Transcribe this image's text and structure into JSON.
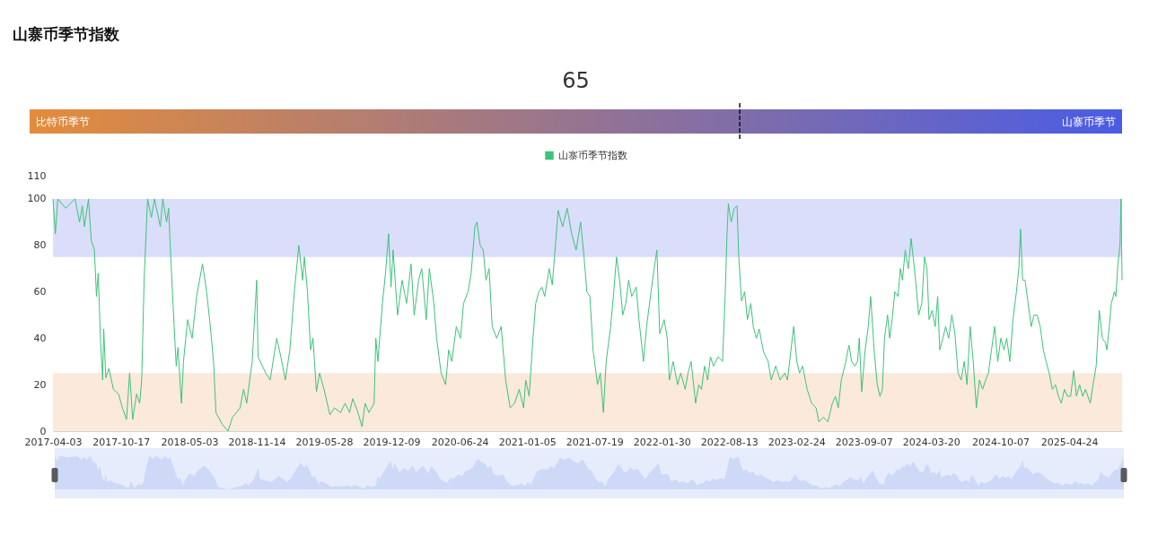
{
  "chart_data": [
    {
      "type": "other",
      "title": "山寨币季节指数",
      "values": [
        65
      ],
      "data_labels": true,
      "annotations": [
        "比特币季节",
        "山寨币季节"
      ]
    },
    {
      "type": "line",
      "legend": "top",
      "grid": false,
      "xlim": [
        "2017-04-03",
        "2025-09-24"
      ],
      "xticks": [
        "2017-04-03",
        "2017-10-17",
        "2018-05-03",
        "2018-11-14",
        "2019-05-28",
        "2019-12-09",
        "2020-06-24",
        "2021-01-05",
        "2021-07-19",
        "2022-01-30",
        "2022-08-13",
        "2023-02-24",
        "2023-09-07",
        "2024-03-20",
        "2024-10-07",
        "2025-04-24"
      ],
      "ylim": [
        0,
        110
      ],
      "yticks": [
        0,
        20,
        40,
        60,
        80,
        100,
        110
      ],
      "bands": [
        {
          "axis": "y",
          "from": 75,
          "to": 100,
          "color": "#dadefa"
        },
        {
          "axis": "y",
          "from": 0,
          "to": 25,
          "color": "#fbe9dc"
        }
      ],
      "x": [
        "2017-04-03",
        "2017-04-10",
        "2017-04-17",
        "2017-05-10",
        "2017-06-06",
        "2017-06-19",
        "2017-06-27",
        "2017-07-03",
        "2017-07-15",
        "2017-07-23",
        "2017-08-01",
        "2017-08-07",
        "2017-08-12",
        "2017-08-19",
        "2017-08-25",
        "2017-08-28",
        "2017-09-03",
        "2017-09-12",
        "2017-09-25",
        "2017-10-10",
        "2017-10-21",
        "2017-11-02",
        "2017-11-11",
        "2017-11-20",
        "2017-12-01",
        "2017-12-10",
        "2017-12-16",
        "2017-12-23",
        "2018-01-02",
        "2018-01-13",
        "2018-01-22",
        "2018-02-08",
        "2018-02-15",
        "2018-02-26",
        "2018-03-04",
        "2018-03-11",
        "2018-03-20",
        "2018-03-26",
        "2018-03-31",
        "2018-04-10",
        "2018-04-16",
        "2018-04-28",
        "2018-05-11",
        "2018-05-24",
        "2018-06-10",
        "2018-06-22",
        "2018-07-02",
        "2018-07-12",
        "2018-07-19",
        "2018-08-06",
        "2018-08-23",
        "2018-09-05",
        "2018-09-27",
        "2018-10-07",
        "2018-10-16",
        "2018-11-01",
        "2018-11-14",
        "2018-11-18",
        "2018-12-10",
        "2018-12-23",
        "2019-01-11",
        "2019-01-23",
        "2019-02-05",
        "2019-02-18",
        "2019-03-03",
        "2019-03-16",
        "2019-03-27",
        "2019-04-01",
        "2019-04-10",
        "2019-04-19",
        "2019-04-26",
        "2019-05-06",
        "2019-05-15",
        "2019-05-28",
        "2019-06-14",
        "2019-06-27",
        "2019-07-15",
        "2019-07-28",
        "2019-08-10",
        "2019-08-19",
        "2019-09-01",
        "2019-09-15",
        "2019-09-24",
        "2019-10-05",
        "2019-10-20",
        "2019-10-25",
        "2019-10-31",
        "2019-11-13",
        "2019-11-22",
        "2019-12-01",
        "2019-12-08",
        "2019-12-14",
        "2019-12-27",
        "2020-01-09",
        "2020-01-22",
        "2020-02-04",
        "2020-02-13",
        "2020-02-26",
        "2020-03-06",
        "2020-03-19",
        "2020-03-28",
        "2020-04-10",
        "2020-04-18",
        "2020-05-01",
        "2020-05-14",
        "2020-05-23",
        "2020-06-01",
        "2020-06-14",
        "2020-06-26",
        "2020-07-05",
        "2020-07-18",
        "2020-07-27",
        "2020-08-07",
        "2020-08-13",
        "2020-08-22",
        "2020-08-31",
        "2020-09-08",
        "2020-09-17",
        "2020-09-26",
        "2020-10-09",
        "2020-10-22",
        "2020-11-04",
        "2020-11-17",
        "2020-11-30",
        "2020-12-13",
        "2020-12-26",
        "2021-01-01",
        "2021-01-11",
        "2021-01-22",
        "2021-01-30",
        "2021-02-08",
        "2021-02-17",
        "2021-02-25",
        "2021-03-10",
        "2021-03-19",
        "2021-03-28",
        "2021-04-05",
        "2021-04-18",
        "2021-05-01",
        "2021-05-14",
        "2021-05-27",
        "2021-06-09",
        "2021-06-19",
        "2021-06-27",
        "2021-07-06",
        "2021-07-15",
        "2021-07-28",
        "2021-08-05",
        "2021-08-14",
        "2021-08-22",
        "2021-09-04",
        "2021-09-13",
        "2021-09-21",
        "2021-09-30",
        "2021-10-09",
        "2021-10-18",
        "2021-10-26",
        "2021-11-04",
        "2021-11-17",
        "2021-11-25",
        "2021-12-08",
        "2021-12-17",
        "2021-12-30",
        "2022-01-08",
        "2022-01-16",
        "2022-01-24",
        "2022-02-06",
        "2022-02-15",
        "2022-02-21",
        "2022-03-04",
        "2022-03-17",
        "2022-03-26",
        "2022-04-08",
        "2022-04-16",
        "2022-04-25",
        "2022-05-08",
        "2022-05-17",
        "2022-05-25",
        "2022-06-03",
        "2022-06-12",
        "2022-06-20",
        "2022-06-29",
        "2022-07-12",
        "2022-07-25",
        "2022-08-02",
        "2022-08-07",
        "2022-08-11",
        "2022-08-19",
        "2022-08-28",
        "2022-09-05",
        "2022-09-10",
        "2022-09-18",
        "2022-09-27",
        "2022-10-05",
        "2022-10-15",
        "2022-10-22",
        "2022-10-31",
        "2022-11-08",
        "2022-11-21",
        "2022-12-04",
        "2022-12-13",
        "2022-12-26",
        "2023-01-08",
        "2023-01-21",
        "2023-01-29",
        "2023-02-16",
        "2023-02-25",
        "2023-03-05",
        "2023-03-14",
        "2023-03-27",
        "2023-04-09",
        "2023-04-22",
        "2023-04-30",
        "2023-05-13",
        "2023-05-26",
        "2023-06-08",
        "2023-06-17",
        "2023-06-25",
        "2023-07-04",
        "2023-07-17",
        "2023-07-26",
        "2023-08-03",
        "2023-08-12",
        "2023-08-20",
        "2023-08-25",
        "2023-09-01",
        "2023-09-11",
        "2023-09-20",
        "2023-09-27",
        "2023-10-07",
        "2023-10-16",
        "2023-10-24",
        "2023-10-31",
        "2023-11-06",
        "2023-11-15",
        "2023-11-21",
        "2023-11-28",
        "2023-12-06",
        "2023-12-15",
        "2023-12-22",
        "2023-12-28",
        "2024-01-05",
        "2024-01-14",
        "2024-01-22",
        "2024-01-28",
        "2024-02-04",
        "2024-02-13",
        "2024-02-22",
        "2024-03-01",
        "2024-03-08",
        "2024-03-14",
        "2024-03-23",
        "2024-04-01",
        "2024-04-08",
        "2024-04-14",
        "2024-04-23",
        "2024-05-01",
        "2024-05-10",
        "2024-05-19",
        "2024-05-28",
        "2024-06-06",
        "2024-06-15",
        "2024-06-24",
        "2024-07-02",
        "2024-07-11",
        "2024-07-20",
        "2024-07-29",
        "2024-08-07",
        "2024-08-16",
        "2024-08-25",
        "2024-09-02",
        "2024-09-11",
        "2024-09-20",
        "2024-09-29",
        "2024-10-08",
        "2024-10-17",
        "2024-10-25",
        "2024-11-03",
        "2024-11-12",
        "2024-11-22",
        "2024-11-29",
        "2024-12-04",
        "2024-12-10",
        "2024-12-17",
        "2024-12-26",
        "2025-01-04",
        "2025-01-12",
        "2025-01-21",
        "2025-01-30",
        "2025-02-08",
        "2025-02-16",
        "2025-02-25",
        "2025-03-06",
        "2025-03-15",
        "2025-03-24",
        "2025-04-01",
        "2025-04-10",
        "2025-04-19",
        "2025-04-28",
        "2025-05-07",
        "2025-05-15",
        "2025-05-24",
        "2025-06-02",
        "2025-06-10",
        "2025-06-24",
        "2025-07-02",
        "2025-07-11",
        "2025-07-20",
        "2025-07-29",
        "2025-08-07",
        "2025-08-11",
        "2025-08-18",
        "2025-08-24",
        "2025-09-02",
        "2025-09-06",
        "2025-09-12",
        "2025-09-18",
        "2025-09-21",
        "2025-09-24"
      ],
      "series": [
        {
          "name": "山寨币季节指数",
          "color": "#3cc47a",
          "values": [
            100,
            85,
            100,
            96,
            100,
            90,
            97,
            88,
            100,
            82,
            78,
            58,
            68,
            38,
            22,
            44,
            23,
            27,
            18,
            16,
            10,
            5,
            25,
            5,
            16,
            12,
            22,
            65,
            100,
            92,
            100,
            88,
            100,
            90,
            96,
            72,
            45,
            28,
            36,
            12,
            30,
            48,
            40,
            58,
            72,
            60,
            46,
            30,
            8,
            3,
            0,
            6,
            10,
            18,
            12,
            30,
            65,
            32,
            25,
            22,
            40,
            32,
            22,
            35,
            60,
            80,
            65,
            75,
            60,
            35,
            40,
            17,
            25,
            18,
            7,
            10,
            8,
            12,
            8,
            14,
            9,
            2,
            12,
            8,
            12,
            40,
            30,
            55,
            68,
            85,
            62,
            78,
            50,
            65,
            55,
            72,
            50,
            65,
            70,
            48,
            70,
            55,
            40,
            25,
            20,
            35,
            30,
            45,
            40,
            55,
            60,
            68,
            88,
            90,
            80,
            78,
            65,
            70,
            45,
            40,
            45,
            22,
            10,
            12,
            18,
            10,
            22,
            15,
            40,
            55,
            60,
            62,
            58,
            70,
            63,
            80,
            95,
            88,
            96,
            85,
            78,
            90,
            75,
            60,
            58,
            35,
            20,
            25,
            8,
            30,
            45,
            60,
            75,
            65,
            50,
            55,
            65,
            58,
            62,
            48,
            30,
            45,
            60,
            70,
            78,
            42,
            48,
            40,
            22,
            30,
            20,
            25,
            18,
            25,
            30,
            12,
            20,
            18,
            28,
            22,
            32,
            28,
            32,
            30,
            60,
            85,
            98,
            90,
            96,
            97,
            75,
            56,
            60,
            48,
            55,
            45,
            40,
            44,
            34,
            30,
            22,
            28,
            22,
            25,
            22,
            45,
            30,
            25,
            28,
            18,
            12,
            10,
            4,
            6,
            4,
            12,
            15,
            10,
            22,
            30,
            37,
            30,
            28,
            30,
            40,
            17,
            35,
            45,
            58,
            35,
            20,
            15,
            18,
            40,
            50,
            40,
            48,
            60,
            58,
            70,
            65,
            78,
            70,
            83,
            75,
            65,
            50,
            55,
            75,
            70,
            48,
            52,
            45,
            58,
            35,
            40,
            45,
            40,
            50,
            42,
            25,
            22,
            30,
            20,
            45,
            30,
            10,
            22,
            18,
            22,
            25,
            35,
            45,
            30,
            40,
            35,
            40,
            30,
            48,
            60,
            70,
            87,
            65,
            65,
            55,
            45,
            50,
            50,
            45,
            35,
            30,
            25,
            18,
            20,
            15,
            12,
            18,
            15,
            15,
            26,
            15,
            20,
            15,
            18,
            12,
            20,
            28,
            52,
            40,
            38,
            35,
            45,
            55,
            60,
            58,
            72,
            80,
            100,
            65
          ]
        }
      ]
    }
  ]
}
